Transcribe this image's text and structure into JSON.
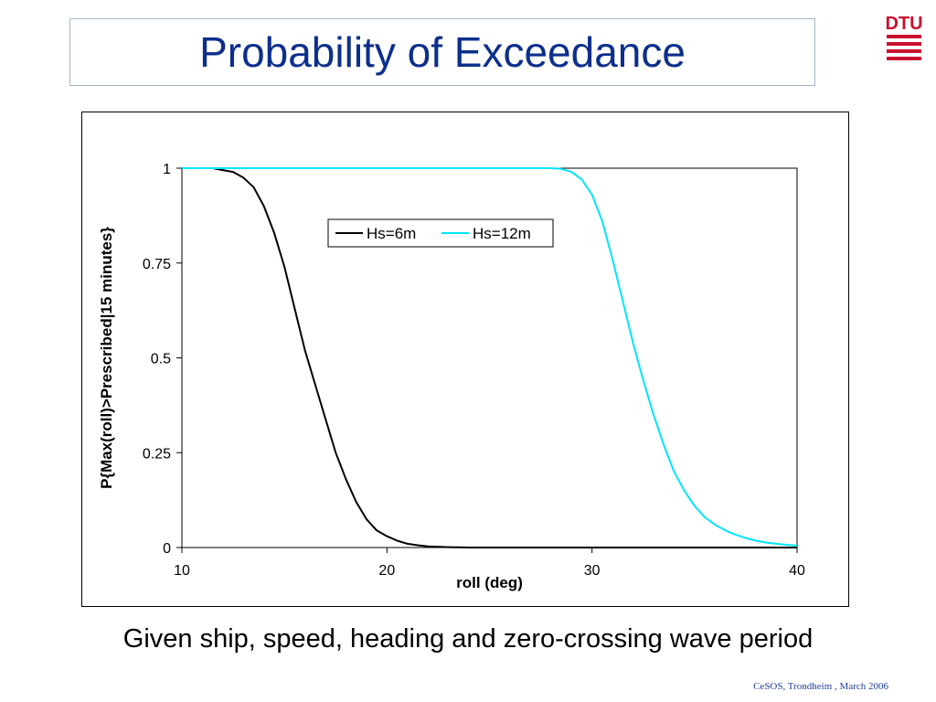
{
  "slide": {
    "title": "Probability of Exceedance",
    "caption": "Given ship, speed, heading and zero-crossing wave period",
    "footer": "CeSOS, Trondheim , March 2006",
    "logo_text": "DTU",
    "logo_color": "#c8102e",
    "title_color": "#0d2f8c"
  },
  "chart_data": {
    "type": "line",
    "title": "",
    "xlabel": "roll (deg)",
    "ylabel": "P{Max(roll)>Prescribed|15 minutes}",
    "xlim": [
      10,
      40
    ],
    "ylim": [
      0,
      1
    ],
    "xticks": [
      10,
      20,
      30,
      40
    ],
    "yticks": [
      0,
      0.25,
      0.5,
      0.75,
      1
    ],
    "ytick_labels": [
      "0",
      "0.25",
      "0.5",
      "0.75",
      "1"
    ],
    "xtick_labels": [
      "10",
      "20",
      "30",
      "40"
    ],
    "legend_position": "top-center",
    "grid": false,
    "series": [
      {
        "name": "Hs=6m",
        "color": "#000000",
        "x": [
          11.5,
          12,
          12.5,
          13,
          13.5,
          14,
          14.5,
          15,
          15.5,
          16,
          16.5,
          17,
          17.5,
          18,
          18.5,
          19,
          19.5,
          20,
          20.5,
          21,
          21.5,
          22,
          23,
          24,
          26,
          30,
          35,
          40
        ],
        "y": [
          1.0,
          0.995,
          0.99,
          0.975,
          0.95,
          0.9,
          0.83,
          0.74,
          0.63,
          0.52,
          0.43,
          0.34,
          0.25,
          0.18,
          0.12,
          0.075,
          0.045,
          0.03,
          0.018,
          0.01,
          0.006,
          0.003,
          0.001,
          0.0,
          0.0,
          0.0,
          0.0,
          0.0
        ]
      },
      {
        "name": "Hs=12m",
        "color": "#00e5ff",
        "x": [
          10,
          28,
          28.5,
          29,
          29.5,
          30,
          30.5,
          31,
          31.5,
          32,
          32.5,
          33,
          33.5,
          34,
          34.5,
          35,
          35.5,
          36,
          36.5,
          37,
          37.5,
          38,
          38.5,
          39,
          39.5,
          40
        ],
        "y": [
          1.0,
          1.0,
          0.998,
          0.99,
          0.97,
          0.93,
          0.86,
          0.76,
          0.65,
          0.54,
          0.44,
          0.35,
          0.27,
          0.2,
          0.15,
          0.11,
          0.08,
          0.06,
          0.045,
          0.034,
          0.025,
          0.018,
          0.013,
          0.01,
          0.007,
          0.005
        ]
      }
    ]
  }
}
